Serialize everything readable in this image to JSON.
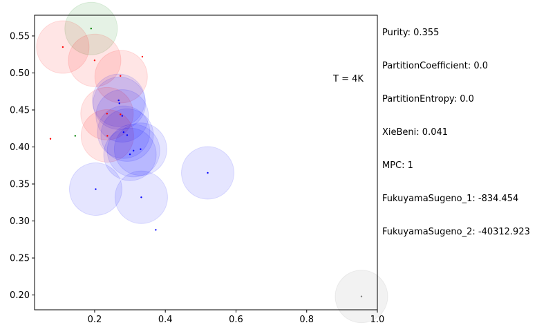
{
  "chart_data": {
    "type": "scatter",
    "title": "",
    "xlabel": "",
    "ylabel": "",
    "xlim": [
      0.03,
      1.0
    ],
    "ylim": [
      0.18,
      0.578
    ],
    "grid": false,
    "x_ticks": [
      0.2,
      0.4,
      0.6,
      0.8,
      1.0
    ],
    "x_tick_labels": [
      "0.2",
      "0.4",
      "0.6",
      "0.8",
      "1.0"
    ],
    "y_ticks": [
      0.2,
      0.25,
      0.3,
      0.35,
      0.4,
      0.45,
      0.5,
      0.55
    ],
    "y_tick_labels": [
      "0.20",
      "0.25",
      "0.30",
      "0.35",
      "0.40",
      "0.45",
      "0.50",
      "0.55"
    ],
    "annotation": "T = 4K",
    "colors": {
      "red": "#ff0000",
      "green": "#008000",
      "blue": "#0000ff",
      "gray": "#808080"
    },
    "clusters": [
      {
        "color": "green",
        "center": [
          0.19,
          0.56
        ]
      },
      {
        "color": "red",
        "center": [
          0.11,
          0.535
        ]
      },
      {
        "color": "red",
        "center": [
          0.2,
          0.517
        ]
      },
      {
        "color": "red",
        "center": [
          0.275,
          0.495
        ]
      },
      {
        "color": "blue",
        "center": [
          0.268,
          0.463
        ]
      },
      {
        "color": "blue",
        "center": [
          0.27,
          0.459
        ]
      },
      {
        "color": "red",
        "center": [
          0.235,
          0.445
        ]
      },
      {
        "color": "blue",
        "center": [
          0.278,
          0.442
        ]
      },
      {
        "color": "blue",
        "center": [
          0.282,
          0.42
        ]
      },
      {
        "color": "red",
        "center": [
          0.236,
          0.415
        ]
      },
      {
        "color": "blue",
        "center": [
          0.292,
          0.416
        ]
      },
      {
        "color": "blue",
        "center": [
          0.33,
          0.397
        ]
      },
      {
        "color": "blue",
        "center": [
          0.31,
          0.395
        ]
      },
      {
        "color": "blue",
        "center": [
          0.3,
          0.39
        ]
      },
      {
        "color": "blue",
        "center": [
          0.52,
          0.365
        ]
      },
      {
        "color": "blue",
        "center": [
          0.203,
          0.343
        ]
      },
      {
        "color": "blue",
        "center": [
          0.332,
          0.332
        ]
      },
      {
        "color": "gray",
        "center": [
          0.955,
          0.198
        ]
      }
    ],
    "points": [
      {
        "color": "green",
        "x": 0.19,
        "y": 0.56
      },
      {
        "color": "red",
        "x": 0.11,
        "y": 0.535
      },
      {
        "color": "red",
        "x": 0.335,
        "y": 0.522
      },
      {
        "color": "red",
        "x": 0.2,
        "y": 0.517
      },
      {
        "color": "red",
        "x": 0.273,
        "y": 0.496
      },
      {
        "color": "blue",
        "x": 0.268,
        "y": 0.463
      },
      {
        "color": "blue",
        "x": 0.27,
        "y": 0.459
      },
      {
        "color": "red",
        "x": 0.235,
        "y": 0.445
      },
      {
        "color": "red",
        "x": 0.273,
        "y": 0.444
      },
      {
        "color": "blue",
        "x": 0.278,
        "y": 0.442
      },
      {
        "color": "blue",
        "x": 0.282,
        "y": 0.42
      },
      {
        "color": "green",
        "x": 0.145,
        "y": 0.415
      },
      {
        "color": "red",
        "x": 0.236,
        "y": 0.415
      },
      {
        "color": "blue",
        "x": 0.292,
        "y": 0.416
      },
      {
        "color": "red",
        "x": 0.075,
        "y": 0.411
      },
      {
        "color": "blue",
        "x": 0.33,
        "y": 0.397
      },
      {
        "color": "blue",
        "x": 0.31,
        "y": 0.395
      },
      {
        "color": "blue",
        "x": 0.3,
        "y": 0.39
      },
      {
        "color": "blue",
        "x": 0.52,
        "y": 0.365
      },
      {
        "color": "blue",
        "x": 0.203,
        "y": 0.343
      },
      {
        "color": "blue",
        "x": 0.332,
        "y": 0.332
      },
      {
        "color": "blue",
        "x": 0.373,
        "y": 0.288
      },
      {
        "color": "gray",
        "x": 0.955,
        "y": 0.198
      }
    ]
  },
  "metrics": {
    "purity": "Purity: 0.355",
    "partition_coefficient": "PartitionCoefficient: 0.0",
    "partition_entropy": "PartitionEntropy: 0.0",
    "xie_beni": "XieBeni: 0.041",
    "mpc": "MPC: 1",
    "fukuyama_sugeno_1": "FukuyamaSugeno_1: -834.454",
    "fukuyama_sugeno_2": "FukuyamaSugeno_2: -40312.923"
  }
}
